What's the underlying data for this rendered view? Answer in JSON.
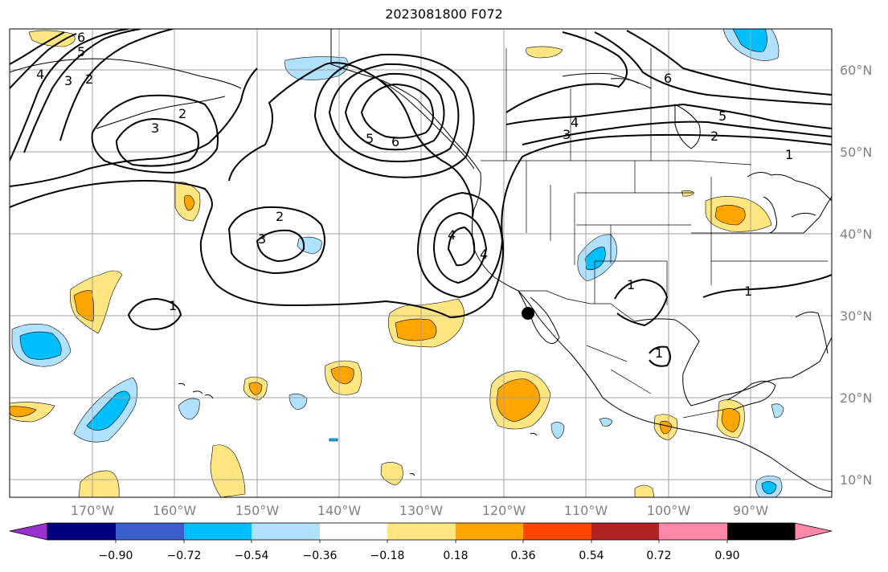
{
  "map": {
    "title": "2023081800 F072",
    "lat_labels": [
      "60°N",
      "50°N",
      "40°N",
      "30°N",
      "20°N",
      "10°N"
    ],
    "lon_labels": [
      "170°W",
      "160°W",
      "150°W",
      "140°W",
      "130°W",
      "120°W",
      "110°W",
      "100°W",
      "90°W"
    ],
    "colorbar": {
      "ticks": [
        "−0.90",
        "−0.72",
        "−0.54",
        "−0.36",
        "−0.18",
        "0.18",
        "0.36",
        "0.54",
        "0.72",
        "0.90"
      ],
      "colors": [
        "#9b30d0",
        "#000080",
        "#3a5fcd",
        "#00bfff",
        "#b0e2ff",
        "#ffffff",
        "#ffe680",
        "#ffa500",
        "#ff4500",
        "#b22222",
        "#ff88aa"
      ]
    },
    "contour_labels": [
      "6",
      "5",
      "4",
      "3",
      "2",
      "3",
      "2",
      "5",
      "6",
      "2",
      "3",
      "1",
      "4",
      "4",
      "4",
      "6",
      "5",
      "3",
      "2",
      "1",
      "1",
      "1",
      "1"
    ],
    "fill_colors": {
      "light_yellow": "#ffe680",
      "orange": "#ffa500",
      "light_blue": "#b0e2ff",
      "deep_sky_blue": "#00bfff"
    },
    "marker": "storm-center-dot"
  }
}
